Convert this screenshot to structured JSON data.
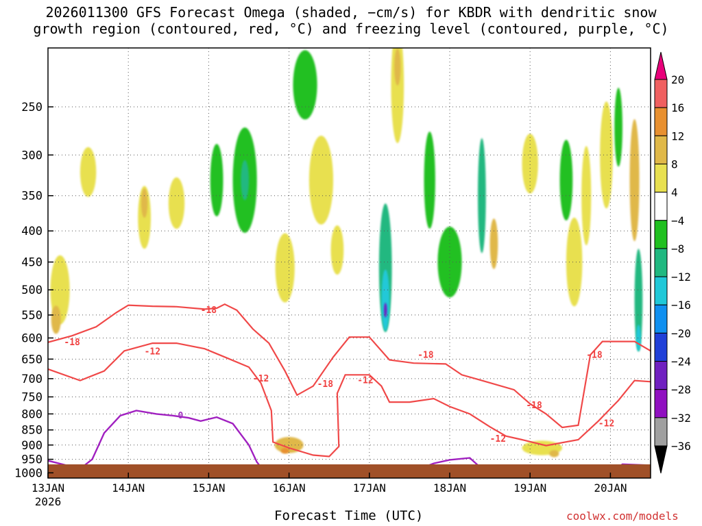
{
  "title_line1": "2026011300 GFS Forecast Omega (shaded, −cm/s) for KBDR with dendritic snow",
  "title_line2": "growth region (contoured, red, °C) and freezing level (contoured, purple, °C)",
  "xlabel": "Forecast Time (UTC)",
  "credit": "coolwx.com/models",
  "chart_data": {
    "type": "heatmap",
    "y_ticks": [
      250,
      300,
      350,
      400,
      450,
      500,
      550,
      600,
      650,
      700,
      750,
      800,
      850,
      900,
      950,
      1000
    ],
    "y_tick_labels": [
      "250",
      "300",
      "350",
      "400",
      "450",
      "500",
      "550",
      "600",
      "650",
      "700",
      "750",
      "800",
      "850",
      "900",
      "950",
      "1000"
    ],
    "y_range_hpa": [
      200,
      1020
    ],
    "x_range_days": [
      13.0,
      20.5
    ],
    "x_ticks": [
      {
        "day": 13,
        "label": "13JAN",
        "sublabel": "2026"
      },
      {
        "day": 14,
        "label": "14JAN",
        "sublabel": ""
      },
      {
        "day": 15,
        "label": "15JAN",
        "sublabel": ""
      },
      {
        "day": 16,
        "label": "16JAN",
        "sublabel": ""
      },
      {
        "day": 17,
        "label": "17JAN",
        "sublabel": ""
      },
      {
        "day": 18,
        "label": "18JAN",
        "sublabel": ""
      },
      {
        "day": 19,
        "label": "19JAN",
        "sublabel": ""
      },
      {
        "day": 20,
        "label": "20JAN",
        "sublabel": ""
      }
    ],
    "grid": true,
    "colorbar": {
      "labels": [
        "20",
        "16",
        "12",
        "8",
        "4",
        "−4",
        "−8",
        "−12",
        "−16",
        "−20",
        "−24",
        "−28",
        "−32",
        "−36"
      ],
      "colors": [
        "#e8f0a0",
        "#f06060",
        "#e89030",
        "#e0b848",
        "#e8e050",
        "#ffffff",
        "#20c020",
        "#20b880",
        "#20c8d8",
        "#1090f0",
        "#2040d8",
        "#7020c0",
        "#9010c0",
        "#a0a0a0"
      ],
      "top_color": "#e8007a",
      "bottom_color": "#000000"
    },
    "omega_blobs": [
      {
        "d": 13.15,
        "p": 500,
        "wd": 0.12,
        "hp": 130,
        "v": 7
      },
      {
        "d": 13.1,
        "p": 560,
        "wd": 0.06,
        "hp": 60,
        "v": 11
      },
      {
        "d": 13.5,
        "p": 320,
        "wd": 0.1,
        "hp": 60,
        "v": 5
      },
      {
        "d": 14.2,
        "p": 380,
        "wd": 0.08,
        "hp": 90,
        "v": 6
      },
      {
        "d": 14.2,
        "p": 360,
        "wd": 0.04,
        "hp": 40,
        "v": 10
      },
      {
        "d": 14.6,
        "p": 360,
        "wd": 0.1,
        "hp": 70,
        "v": 5
      },
      {
        "d": 15.45,
        "p": 330,
        "wd": 0.15,
        "hp": 130,
        "v": -7
      },
      {
        "d": 15.45,
        "p": 330,
        "wd": 0.05,
        "hp": 50,
        "v": -11
      },
      {
        "d": 15.1,
        "p": 330,
        "wd": 0.08,
        "hp": 90,
        "v": -6
      },
      {
        "d": 15.95,
        "p": 460,
        "wd": 0.12,
        "hp": 120,
        "v": 5
      },
      {
        "d": 16.0,
        "p": 900,
        "wd": 0.18,
        "hp": 55,
        "v": 8
      },
      {
        "d": 15.95,
        "p": 920,
        "wd": 0.05,
        "hp": 20,
        "v": 13
      },
      {
        "d": 16.4,
        "p": 330,
        "wd": 0.15,
        "hp": 110,
        "v": 6
      },
      {
        "d": 16.6,
        "p": 430,
        "wd": 0.08,
        "hp": 80,
        "v": 5
      },
      {
        "d": 16.2,
        "p": 230,
        "wd": 0.15,
        "hp": 60,
        "v": -6
      },
      {
        "d": 17.2,
        "p": 460,
        "wd": 0.08,
        "hp": 220,
        "v": -9
      },
      {
        "d": 17.2,
        "p": 520,
        "wd": 0.05,
        "hp": 120,
        "v": -15
      },
      {
        "d": 17.2,
        "p": 540,
        "wd": 0.02,
        "hp": 30,
        "v": -26
      },
      {
        "d": 17.35,
        "p": 230,
        "wd": 0.08,
        "hp": 100,
        "v": 5
      },
      {
        "d": 17.35,
        "p": 215,
        "wd": 0.04,
        "hp": 30,
        "v": 10
      },
      {
        "d": 17.75,
        "p": 330,
        "wd": 0.07,
        "hp": 120,
        "v": -6
      },
      {
        "d": 18.0,
        "p": 450,
        "wd": 0.15,
        "hp": 120,
        "v": -6
      },
      {
        "d": 18.4,
        "p": 350,
        "wd": 0.05,
        "hp": 150,
        "v": -8
      },
      {
        "d": 18.55,
        "p": 420,
        "wd": 0.05,
        "hp": 80,
        "v": 8
      },
      {
        "d": 19.0,
        "p": 310,
        "wd": 0.1,
        "hp": 70,
        "v": 6
      },
      {
        "d": 19.15,
        "p": 910,
        "wd": 0.25,
        "hp": 50,
        "v": 7
      },
      {
        "d": 19.3,
        "p": 930,
        "wd": 0.06,
        "hp": 25,
        "v": 11
      },
      {
        "d": 19.45,
        "p": 330,
        "wd": 0.08,
        "hp": 100,
        "v": -6
      },
      {
        "d": 19.55,
        "p": 450,
        "wd": 0.1,
        "hp": 150,
        "v": 7
      },
      {
        "d": 19.7,
        "p": 350,
        "wd": 0.06,
        "hp": 130,
        "v": 6
      },
      {
        "d": 19.95,
        "p": 300,
        "wd": 0.08,
        "hp": 120,
        "v": 5
      },
      {
        "d": 20.1,
        "p": 270,
        "wd": 0.05,
        "hp": 80,
        "v": -7
      },
      {
        "d": 20.3,
        "p": 330,
        "wd": 0.06,
        "hp": 150,
        "v": 9
      },
      {
        "d": 20.35,
        "p": 520,
        "wd": 0.05,
        "hp": 200,
        "v": -8
      },
      {
        "d": 20.35,
        "p": 600,
        "wd": 0.03,
        "hp": 60,
        "v": -13
      }
    ],
    "minus18_upper_contour": [
      [
        13.0,
        610
      ],
      [
        13.3,
        595
      ],
      [
        13.6,
        575
      ],
      [
        13.85,
        545
      ],
      [
        14.0,
        530
      ],
      [
        14.3,
        532
      ],
      [
        14.6,
        533
      ],
      [
        14.95,
        538
      ],
      [
        15.1,
        536
      ],
      [
        15.2,
        528
      ],
      [
        15.35,
        540
      ],
      [
        15.55,
        580
      ],
      [
        15.75,
        612
      ],
      [
        15.95,
        680
      ],
      [
        16.1,
        745
      ],
      [
        16.3,
        720
      ],
      [
        16.55,
        645
      ],
      [
        16.75,
        598
      ],
      [
        17.0,
        598
      ],
      [
        17.25,
        652
      ],
      [
        17.55,
        660
      ],
      [
        17.95,
        662
      ],
      [
        18.15,
        690
      ],
      [
        18.4,
        705
      ],
      [
        18.8,
        730
      ],
      [
        19.0,
        770
      ],
      [
        19.2,
        800
      ],
      [
        19.4,
        842
      ],
      [
        19.6,
        835
      ],
      [
        19.75,
        640
      ],
      [
        19.9,
        608
      ],
      [
        20.3,
        608
      ],
      [
        20.5,
        630
      ]
    ],
    "minus12_contour": [
      [
        13.0,
        675
      ],
      [
        13.4,
        705
      ],
      [
        13.7,
        680
      ],
      [
        13.95,
        630
      ],
      [
        14.3,
        612
      ],
      [
        14.6,
        612
      ],
      [
        14.95,
        625
      ],
      [
        15.2,
        645
      ],
      [
        15.5,
        670
      ],
      [
        15.65,
        712
      ],
      [
        15.78,
        790
      ],
      [
        15.8,
        890
      ],
      [
        16.0,
        910
      ],
      [
        16.3,
        935
      ],
      [
        16.5,
        940
      ],
      [
        16.62,
        905
      ],
      [
        16.6,
        740
      ],
      [
        16.7,
        690
      ],
      [
        17.0,
        690
      ],
      [
        17.15,
        720
      ],
      [
        17.25,
        765
      ],
      [
        17.5,
        765
      ],
      [
        17.8,
        755
      ],
      [
        18.0,
        778
      ],
      [
        18.25,
        800
      ],
      [
        18.5,
        840
      ],
      [
        18.7,
        870
      ],
      [
        18.9,
        882
      ],
      [
        19.2,
        902
      ],
      [
        19.6,
        882
      ],
      [
        19.85,
        822
      ],
      [
        20.1,
        760
      ],
      [
        20.3,
        705
      ],
      [
        20.5,
        708
      ]
    ],
    "freezing_contour": [
      [
        13.0,
        955
      ],
      [
        13.4,
        985
      ],
      [
        13.55,
        950
      ],
      [
        13.7,
        860
      ],
      [
        13.9,
        805
      ],
      [
        14.1,
        790
      ],
      [
        14.35,
        800
      ],
      [
        14.55,
        805
      ],
      [
        14.75,
        812
      ],
      [
        14.9,
        822
      ],
      [
        15.1,
        810
      ],
      [
        15.3,
        830
      ],
      [
        15.5,
        900
      ],
      [
        15.6,
        960
      ],
      [
        15.7,
        998
      ]
    ],
    "freezing_contour2": [
      [
        17.0,
        985
      ],
      [
        17.3,
        978
      ],
      [
        17.6,
        988
      ],
      [
        17.8,
        965
      ],
      [
        18.0,
        952
      ],
      [
        18.25,
        945
      ],
      [
        18.4,
        985
      ]
    ],
    "freezing_contour3": [
      [
        20.05,
        990
      ],
      [
        20.15,
        968
      ],
      [
        20.5,
        972
      ]
    ],
    "contour_labels": [
      {
        "d": 13.3,
        "p": 610,
        "text": "-18",
        "color": "#f04040"
      },
      {
        "d": 15.0,
        "p": 540,
        "text": "-18",
        "color": "#f04040"
      },
      {
        "d": 14.3,
        "p": 632,
        "text": "-12",
        "color": "#f04040"
      },
      {
        "d": 15.65,
        "p": 700,
        "text": "-12",
        "color": "#f04040"
      },
      {
        "d": 16.45,
        "p": 715,
        "text": "-18",
        "color": "#f04040"
      },
      {
        "d": 16.95,
        "p": 705,
        "text": "-12",
        "color": "#f04040"
      },
      {
        "d": 17.7,
        "p": 640,
        "text": "-18",
        "color": "#f04040"
      },
      {
        "d": 18.6,
        "p": 880,
        "text": "-12",
        "color": "#f04040"
      },
      {
        "d": 19.05,
        "p": 775,
        "text": "-18",
        "color": "#f04040"
      },
      {
        "d": 19.8,
        "p": 640,
        "text": "-18",
        "color": "#f04040"
      },
      {
        "d": 19.95,
        "p": 830,
        "text": "-12",
        "color": "#f04040"
      },
      {
        "d": 14.65,
        "p": 805,
        "text": "0",
        "color": "#a030c0"
      },
      {
        "d": 17.55,
        "p": 988,
        "text": "0",
        "color": "#a030c0"
      }
    ],
    "ground_color": "#a05028"
  }
}
